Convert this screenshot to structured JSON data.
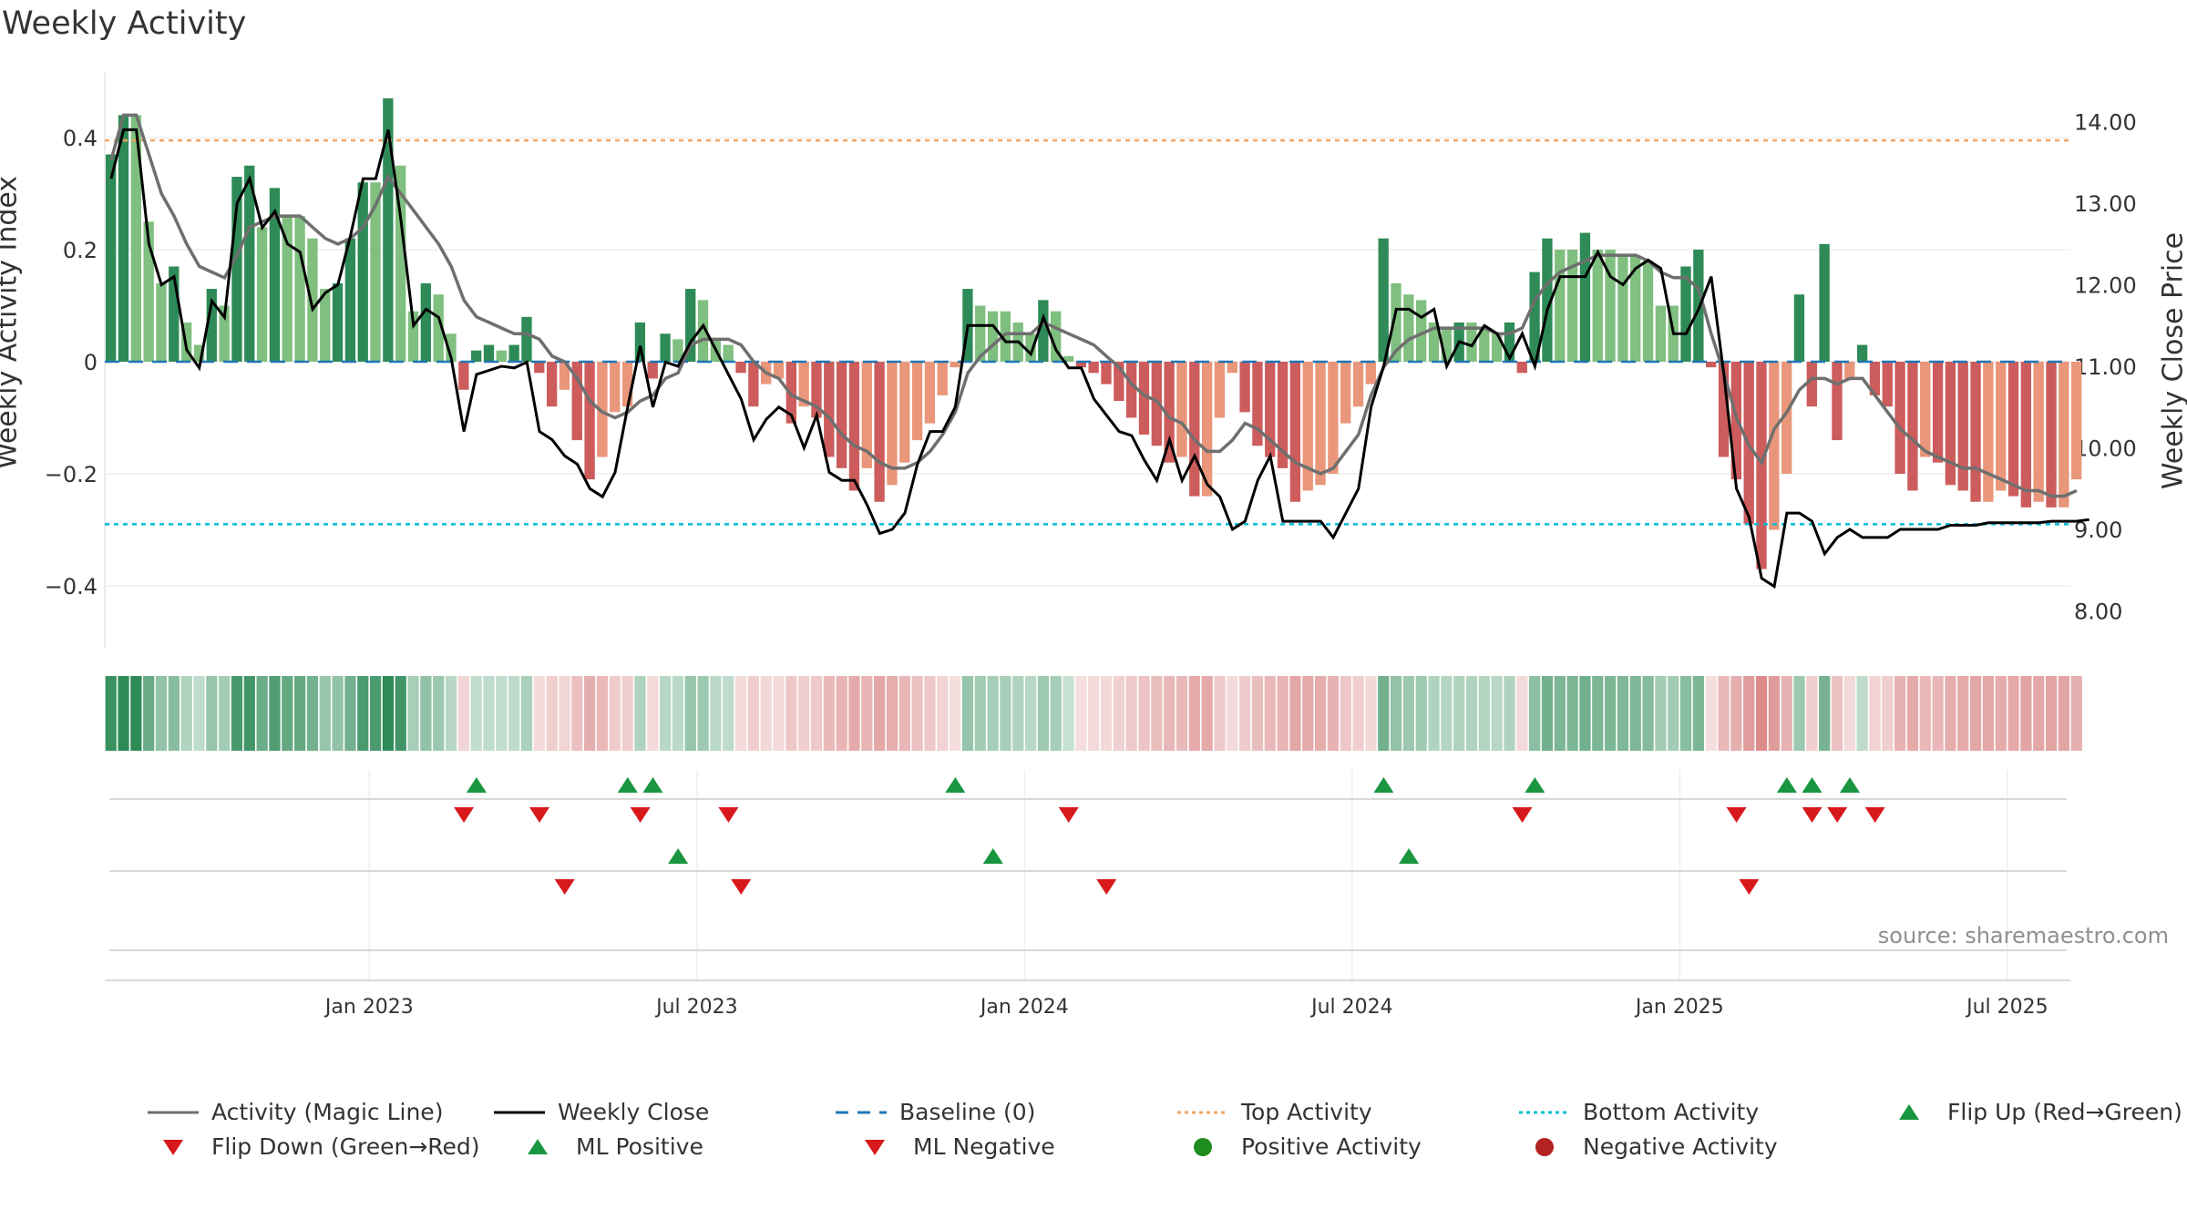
{
  "colors": {
    "pos_dark": "#2e8b57",
    "pos_light": "#7fbf7f",
    "neg_dark": "#cd5c5c",
    "neg_light": "#e9967a",
    "magic": "#6f6f6f",
    "close": "#000000",
    "top": "#f4a460",
    "bottom": "#00bcd4",
    "baseline": "#1f77b4",
    "up": "#1a9641",
    "down": "#d7191c",
    "pos_dot": "#1e8c1e",
    "neg_dot": "#b22222"
  },
  "chart_data": {
    "type": "bar",
    "title": "Weekly Activity",
    "ylabel": "Weekly Activity Index",
    "y2label": "Weekly Close Price",
    "ylim": [
      -0.5,
      0.52
    ],
    "y2lim": [
      7.6,
      14.5
    ],
    "yticks": [
      "0.4",
      "0.2",
      "0",
      "−0.2",
      "−0.4"
    ],
    "ytick_values": [
      0.4,
      0.2,
      0,
      -0.2,
      -0.4
    ],
    "y2ticks": [
      "14.00",
      "13.00",
      "12.00",
      "11.00",
      "10.00",
      "9.00",
      "8.00"
    ],
    "y2tick_values": [
      14,
      13,
      12,
      11,
      10,
      9,
      8
    ],
    "xticks": [
      "Jan 2023",
      "Jul 2023",
      "Jan 2024",
      "Jul 2024",
      "Jan 2025",
      "Jul 2025"
    ],
    "xtick_weeks": [
      21,
      47,
      73,
      99,
      125,
      151
    ],
    "n_weeks": 156,
    "top_activity": 0.395,
    "bottom_activity": -0.29,
    "activity": [
      0.37,
      0.44,
      0.44,
      0.25,
      0.14,
      0.17,
      0.07,
      0.03,
      0.13,
      0.1,
      0.33,
      0.35,
      0.24,
      0.31,
      0.26,
      0.26,
      0.22,
      0.13,
      0.14,
      0.22,
      0.32,
      0.32,
      0.47,
      0.35,
      0.09,
      0.14,
      0.12,
      0.05,
      -0.05,
      0.02,
      0.03,
      0.02,
      0.03,
      0.08,
      -0.02,
      -0.08,
      -0.05,
      -0.14,
      -0.21,
      -0.17,
      -0.09,
      -0.08,
      0.07,
      -0.03,
      0.05,
      0.04,
      0.13,
      0.11,
      0.04,
      0.03,
      -0.02,
      -0.08,
      -0.04,
      -0.03,
      -0.11,
      -0.08,
      -0.1,
      -0.17,
      -0.19,
      -0.23,
      -0.19,
      -0.25,
      -0.22,
      -0.18,
      -0.14,
      -0.11,
      -0.06,
      -0.01,
      0.13,
      0.1,
      0.09,
      0.09,
      0.07,
      0.05,
      0.11,
      0.09,
      0.01,
      -0.01,
      -0.02,
      -0.04,
      -0.07,
      -0.1,
      -0.13,
      -0.15,
      -0.18,
      -0.17,
      -0.24,
      -0.24,
      -0.1,
      -0.02,
      -0.09,
      -0.15,
      -0.17,
      -0.19,
      -0.25,
      -0.23,
      -0.22,
      -0.2,
      -0.11,
      -0.08,
      -0.04,
      0.22,
      0.14,
      0.12,
      0.11,
      0.07,
      0.06,
      0.07,
      0.07,
      0.06,
      0.05,
      0.07,
      -0.02,
      0.16,
      0.22,
      0.2,
      0.2,
      0.23,
      0.2,
      0.2,
      0.19,
      0.19,
      0.18,
      0.1,
      0.1,
      0.17,
      0.2,
      -0.01,
      -0.17,
      -0.21,
      -0.29,
      -0.37,
      -0.3,
      -0.2,
      0.12,
      -0.08,
      0.21,
      -0.14,
      -0.03,
      0.03,
      -0.06,
      -0.08,
      -0.2,
      -0.23,
      -0.17,
      -0.18,
      -0.22,
      -0.23,
      -0.25,
      -0.25,
      -0.23,
      -0.24,
      -0.26,
      -0.25,
      -0.26,
      -0.26,
      -0.21
    ],
    "magic_line": [
      0.36,
      0.44,
      0.44,
      0.37,
      0.3,
      0.26,
      0.21,
      0.17,
      0.16,
      0.15,
      0.19,
      0.24,
      0.25,
      0.26,
      0.26,
      0.26,
      0.24,
      0.22,
      0.21,
      0.22,
      0.24,
      0.28,
      0.33,
      0.3,
      0.27,
      0.24,
      0.21,
      0.17,
      0.11,
      0.08,
      0.07,
      0.06,
      0.05,
      0.05,
      0.04,
      0.01,
      0,
      -0.03,
      -0.07,
      -0.09,
      -0.1,
      -0.09,
      -0.07,
      -0.06,
      -0.03,
      -0.02,
      0.03,
      0.04,
      0.04,
      0.04,
      0.03,
      0,
      -0.02,
      -0.03,
      -0.06,
      -0.07,
      -0.08,
      -0.1,
      -0.13,
      -0.15,
      -0.16,
      -0.18,
      -0.19,
      -0.19,
      -0.18,
      -0.16,
      -0.13,
      -0.09,
      -0.02,
      0.01,
      0.03,
      0.05,
      0.05,
      0.05,
      0.07,
      0.06,
      0.05,
      0.04,
      0.03,
      0.01,
      -0.01,
      -0.04,
      -0.06,
      -0.07,
      -0.1,
      -0.11,
      -0.14,
      -0.16,
      -0.16,
      -0.14,
      -0.11,
      -0.12,
      -0.14,
      -0.16,
      -0.18,
      -0.19,
      -0.2,
      -0.19,
      -0.16,
      -0.13,
      -0.06,
      -0.01,
      0.02,
      0.04,
      0.05,
      0.06,
      0.06,
      0.06,
      0.06,
      0.06,
      0.05,
      0.05,
      0.06,
      0.11,
      0.14,
      0.16,
      0.17,
      0.18,
      0.19,
      0.19,
      0.19,
      0.19,
      0.18,
      0.16,
      0.15,
      0.15,
      0.13,
      0.05,
      -0.02,
      -0.1,
      -0.15,
      -0.18,
      -0.12,
      -0.09,
      -0.05,
      -0.03,
      -0.03,
      -0.04,
      -0.03,
      -0.03,
      -0.06,
      -0.09,
      -0.12,
      -0.14,
      -0.16,
      -0.17,
      -0.18,
      -0.19,
      -0.19,
      -0.2,
      -0.21,
      -0.22,
      -0.23,
      -0.23,
      -0.24,
      -0.24,
      -0.23
    ],
    "weekly_close": [
      13.3,
      13.9,
      13.9,
      12.5,
      12.0,
      12.1,
      11.2,
      10.98,
      11.8,
      11.6,
      13.0,
      13.3,
      12.7,
      12.9,
      12.5,
      12.4,
      11.7,
      11.9,
      12.0,
      12.6,
      13.3,
      13.3,
      13.9,
      12.8,
      11.5,
      11.7,
      11.6,
      11.1,
      10.2,
      10.9,
      10.95,
      11.0,
      10.98,
      11.05,
      10.2,
      10.1,
      9.9,
      9.8,
      9.5,
      9.4,
      9.7,
      10.5,
      11.25,
      10.5,
      11.05,
      11.0,
      11.3,
      11.5,
      11.2,
      10.9,
      10.6,
      10.1,
      10.35,
      10.5,
      10.4,
      10.0,
      10.4,
      9.7,
      9.6,
      9.6,
      9.3,
      8.95,
      9.0,
      9.2,
      9.8,
      10.2,
      10.2,
      10.5,
      11.5,
      11.5,
      11.5,
      11.3,
      11.3,
      11.15,
      11.6,
      11.2,
      10.98,
      10.98,
      10.6,
      10.4,
      10.2,
      10.15,
      9.85,
      9.6,
      10.1,
      9.6,
      9.9,
      9.55,
      9.4,
      9.0,
      9.1,
      9.6,
      9.9,
      9.1,
      9.1,
      9.1,
      9.1,
      8.9,
      9.2,
      9.5,
      10.5,
      11.0,
      11.7,
      11.7,
      11.6,
      11.7,
      11.0,
      11.3,
      11.25,
      11.5,
      11.4,
      11.1,
      11.4,
      11.0,
      11.7,
      12.1,
      12.1,
      12.1,
      12.4,
      12.1,
      12.0,
      12.2,
      12.3,
      12.2,
      11.4,
      11.4,
      11.7,
      12.1,
      10.9,
      9.5,
      9.15,
      8.4,
      8.3,
      9.2,
      9.2,
      9.1,
      8.7,
      8.9,
      9.0,
      8.9,
      8.9,
      8.9,
      9.0,
      9.0,
      9.0,
      9.0,
      9.05,
      9.05,
      9.05,
      9.08,
      9.08,
      9.08,
      9.08,
      9.08,
      9.1,
      9.1,
      9.1,
      9.12
    ],
    "flip_row1_up": [
      29,
      41,
      43,
      67,
      101,
      113,
      133,
      135,
      138
    ],
    "flip_row1_down": [
      28,
      34,
      42,
      49,
      76,
      112,
      129,
      135,
      137,
      140
    ],
    "flip_row2_up": [
      45,
      70,
      103
    ],
    "flip_row2_down": [
      36,
      50,
      79,
      130
    ]
  },
  "source": "source: sharemaestro.com",
  "legend": [
    {
      "label": "Activity (Magic Line)",
      "symbol": "line",
      "color": "#6f6f6f"
    },
    {
      "label": "Weekly Close",
      "symbol": "line",
      "color": "#000000"
    },
    {
      "label": "Baseline (0)",
      "symbol": "dash",
      "color": "#1f77b4"
    },
    {
      "label": "Top Activity",
      "symbol": "dot-line",
      "color": "#f4a460"
    },
    {
      "label": "Bottom Activity",
      "symbol": "dot-line",
      "color": "#00bcd4"
    },
    {
      "label": "Flip Up (Red→Green)",
      "symbol": "tri-up",
      "color": "#1a9641"
    },
    {
      "label": "Flip Down (Green→Red)",
      "symbol": "tri-down",
      "color": "#d7191c"
    },
    {
      "label": "ML Positive",
      "symbol": "tri-up",
      "color": "#1a9641"
    },
    {
      "label": "ML Negative",
      "symbol": "tri-down",
      "color": "#d7191c"
    },
    {
      "label": "Positive Activity",
      "symbol": "circle",
      "color": "#1e8c1e"
    },
    {
      "label": "Negative Activity",
      "symbol": "circle",
      "color": "#b22222"
    }
  ]
}
